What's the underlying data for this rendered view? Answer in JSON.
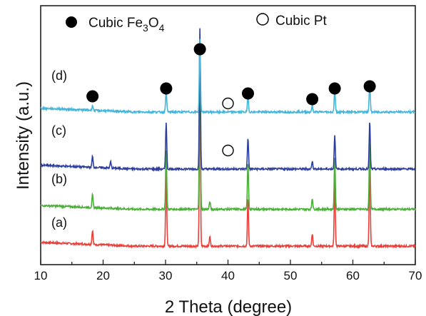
{
  "chart_data": {
    "type": "line",
    "title": "",
    "xlabel": "2 Theta (degree)",
    "ylabel": "Intensity (a.u.)",
    "xlim": [
      10,
      70
    ],
    "x_ticks": [
      10,
      20,
      30,
      40,
      50,
      60,
      70
    ],
    "y_ticks_shown": false,
    "legend": {
      "placement": "top",
      "entries": [
        {
          "marker": "filled-circle",
          "label_main": "Cubic Fe",
          "sub1": "3",
          "mid": "O",
          "sub2": "4"
        },
        {
          "marker": "open-circle",
          "label": "Cubic Pt"
        }
      ]
    },
    "peaks_2theta": [
      18.3,
      30.1,
      35.5,
      37.1,
      43.2,
      53.5,
      57.1,
      62.7
    ],
    "series": [
      {
        "name": "(a)",
        "color": "#e8403a",
        "baseline": 0.0,
        "peaks": [
          [
            18.3,
            0.09
          ],
          [
            30.1,
            0.5
          ],
          [
            35.5,
            1.0
          ],
          [
            37.1,
            0.06
          ],
          [
            43.2,
            0.3
          ],
          [
            53.5,
            0.08
          ],
          [
            57.1,
            0.42
          ],
          [
            62.7,
            0.53
          ]
        ]
      },
      {
        "name": "(b)",
        "color": "#4caf3a",
        "baseline": 0.22,
        "peaks": [
          [
            18.3,
            0.08
          ],
          [
            30.1,
            0.38
          ],
          [
            35.5,
            1.0
          ],
          [
            37.1,
            0.05
          ],
          [
            43.2,
            0.3
          ],
          [
            53.5,
            0.07
          ],
          [
            57.1,
            0.33
          ],
          [
            62.7,
            0.43
          ]
        ]
      },
      {
        "name": "(c)",
        "color": "#2e3f9e",
        "baseline": 0.46,
        "peaks": [
          [
            18.3,
            0.07
          ],
          [
            21.2,
            0.04
          ],
          [
            30.1,
            0.3
          ],
          [
            35.5,
            0.9
          ],
          [
            43.2,
            0.2
          ],
          [
            53.5,
            0.05
          ],
          [
            57.1,
            0.22
          ],
          [
            62.7,
            0.3
          ]
        ]
      },
      {
        "name": "(d)",
        "color": "#45b5d9",
        "baseline": 0.8,
        "peaks": [
          [
            18.3,
            0.03
          ],
          [
            30.1,
            0.14
          ],
          [
            35.5,
            0.46
          ],
          [
            43.2,
            0.1
          ],
          [
            53.5,
            0.04
          ],
          [
            57.1,
            0.14
          ],
          [
            62.7,
            0.18
          ]
        ]
      }
    ],
    "annotations": {
      "fe3o4_markers_x": [
        18.3,
        30.1,
        35.5,
        43.2,
        53.5,
        57.1,
        62.7
      ],
      "pt_markers_x": [
        40.0,
        40.0
      ]
    }
  },
  "colors": {
    "axis": "#111111",
    "filled_marker": "#000000"
  }
}
